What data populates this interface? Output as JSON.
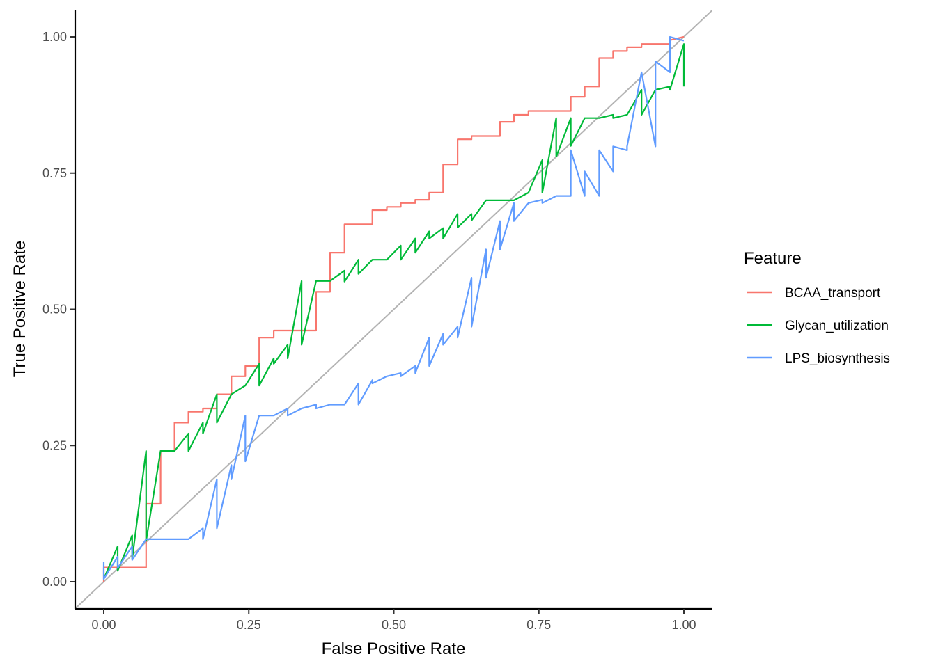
{
  "chart_data": {
    "type": "line",
    "title": "",
    "xlabel": "False Positive Rate",
    "ylabel": "True Positive Rate",
    "xlim": [
      0,
      1
    ],
    "ylim": [
      0,
      1
    ],
    "x_ticks": [
      "0.00",
      "0.25",
      "0.50",
      "0.75",
      "1.00"
    ],
    "y_ticks": [
      "0.00",
      "0.25",
      "0.50",
      "0.75",
      "1.00"
    ],
    "grid": false,
    "legend": {
      "title": "Feature",
      "position": "right"
    },
    "reference_line": {
      "label": "",
      "color": "#b3b3b3",
      "x": [
        -0.05,
        1.05
      ],
      "y": [
        -0.05,
        1.05
      ]
    },
    "series": [
      {
        "name": "BCAA_transport",
        "color": "#f8766d",
        "x": [
          0.0,
          0.0,
          0.073,
          0.073,
          0.098,
          0.098,
          0.122,
          0.122,
          0.146,
          0.146,
          0.171,
          0.171,
          0.195,
          0.195,
          0.22,
          0.22,
          0.244,
          0.244,
          0.268,
          0.268,
          0.293,
          0.293,
          0.366,
          0.366,
          0.39,
          0.39,
          0.415,
          0.415,
          0.463,
          0.463,
          0.488,
          0.488,
          0.512,
          0.512,
          0.537,
          0.537,
          0.561,
          0.561,
          0.585,
          0.585,
          0.61,
          0.61,
          0.634,
          0.634,
          0.683,
          0.683,
          0.707,
          0.707,
          0.732,
          0.732,
          0.805,
          0.805,
          0.829,
          0.829,
          0.854,
          0.854,
          0.878,
          0.878,
          0.902,
          0.902,
          0.927,
          0.927,
          0.976,
          0.976,
          1.0
        ],
        "y": [
          0.0,
          0.026,
          0.026,
          0.143,
          0.143,
          0.24,
          0.24,
          0.292,
          0.292,
          0.312,
          0.312,
          0.318,
          0.318,
          0.344,
          0.344,
          0.377,
          0.377,
          0.396,
          0.396,
          0.448,
          0.448,
          0.461,
          0.461,
          0.532,
          0.532,
          0.604,
          0.604,
          0.656,
          0.656,
          0.682,
          0.682,
          0.688,
          0.688,
          0.695,
          0.695,
          0.701,
          0.701,
          0.714,
          0.714,
          0.766,
          0.766,
          0.812,
          0.812,
          0.818,
          0.818,
          0.844,
          0.844,
          0.857,
          0.857,
          0.864,
          0.864,
          0.89,
          0.89,
          0.909,
          0.909,
          0.961,
          0.961,
          0.974,
          0.974,
          0.981,
          0.981,
          0.987,
          0.987,
          0.994,
          1.0
        ]
      },
      {
        "name": "Glycan_utilization",
        "color": "#00ba38",
        "x": [
          0.0,
          0.024,
          0.024,
          0.049,
          0.049,
          0.073,
          0.073,
          0.098,
          0.122,
          0.146,
          0.146,
          0.171,
          0.171,
          0.195,
          0.195,
          0.22,
          0.244,
          0.268,
          0.268,
          0.293,
          0.293,
          0.317,
          0.317,
          0.341,
          0.341,
          0.366,
          0.39,
          0.415,
          0.415,
          0.439,
          0.439,
          0.463,
          0.488,
          0.512,
          0.512,
          0.537,
          0.537,
          0.561,
          0.561,
          0.585,
          0.585,
          0.61,
          0.61,
          0.634,
          0.634,
          0.659,
          0.683,
          0.707,
          0.732,
          0.756,
          0.756,
          0.78,
          0.78,
          0.805,
          0.805,
          0.829,
          0.854,
          0.878,
          0.878,
          0.902,
          0.927,
          0.927,
          0.951,
          0.976,
          0.976,
          1.0,
          1.0
        ],
        "y": [
          0.005,
          0.065,
          0.02,
          0.085,
          0.042,
          0.24,
          0.075,
          0.24,
          0.24,
          0.272,
          0.24,
          0.292,
          0.272,
          0.344,
          0.292,
          0.344,
          0.36,
          0.4,
          0.36,
          0.41,
          0.4,
          0.435,
          0.41,
          0.552,
          0.435,
          0.552,
          0.552,
          0.571,
          0.551,
          0.591,
          0.565,
          0.591,
          0.591,
          0.617,
          0.591,
          0.63,
          0.604,
          0.643,
          0.63,
          0.649,
          0.63,
          0.675,
          0.65,
          0.675,
          0.663,
          0.7,
          0.7,
          0.7,
          0.714,
          0.774,
          0.714,
          0.851,
          0.78,
          0.851,
          0.8,
          0.851,
          0.851,
          0.857,
          0.851,
          0.857,
          0.903,
          0.857,
          0.903,
          0.909,
          0.903,
          0.987,
          0.909
        ]
      },
      {
        "name": "LPS_biosynthesis",
        "color": "#619cff",
        "x": [
          0.0,
          0.0,
          0.024,
          0.024,
          0.049,
          0.049,
          0.073,
          0.098,
          0.146,
          0.171,
          0.171,
          0.195,
          0.195,
          0.22,
          0.22,
          0.244,
          0.244,
          0.268,
          0.293,
          0.317,
          0.317,
          0.341,
          0.366,
          0.366,
          0.39,
          0.415,
          0.439,
          0.439,
          0.463,
          0.463,
          0.488,
          0.512,
          0.512,
          0.537,
          0.537,
          0.561,
          0.561,
          0.585,
          0.585,
          0.61,
          0.61,
          0.634,
          0.634,
          0.659,
          0.659,
          0.683,
          0.683,
          0.707,
          0.707,
          0.732,
          0.756,
          0.756,
          0.78,
          0.805,
          0.805,
          0.829,
          0.829,
          0.854,
          0.854,
          0.878,
          0.878,
          0.902,
          0.902,
          0.927,
          0.951,
          0.951,
          0.976,
          0.976,
          1.0
        ],
        "y": [
          0.036,
          0.005,
          0.046,
          0.025,
          0.065,
          0.04,
          0.078,
          0.078,
          0.078,
          0.098,
          0.078,
          0.188,
          0.098,
          0.214,
          0.188,
          0.305,
          0.221,
          0.305,
          0.305,
          0.318,
          0.305,
          0.318,
          0.325,
          0.318,
          0.325,
          0.325,
          0.364,
          0.325,
          0.37,
          0.364,
          0.377,
          0.383,
          0.377,
          0.396,
          0.383,
          0.448,
          0.396,
          0.455,
          0.435,
          0.468,
          0.448,
          0.558,
          0.468,
          0.61,
          0.558,
          0.662,
          0.61,
          0.695,
          0.662,
          0.695,
          0.701,
          0.695,
          0.708,
          0.708,
          0.792,
          0.708,
          0.753,
          0.708,
          0.792,
          0.753,
          0.799,
          0.792,
          0.799,
          0.935,
          0.799,
          0.955,
          0.935,
          1.0,
          0.993
        ]
      }
    ]
  }
}
